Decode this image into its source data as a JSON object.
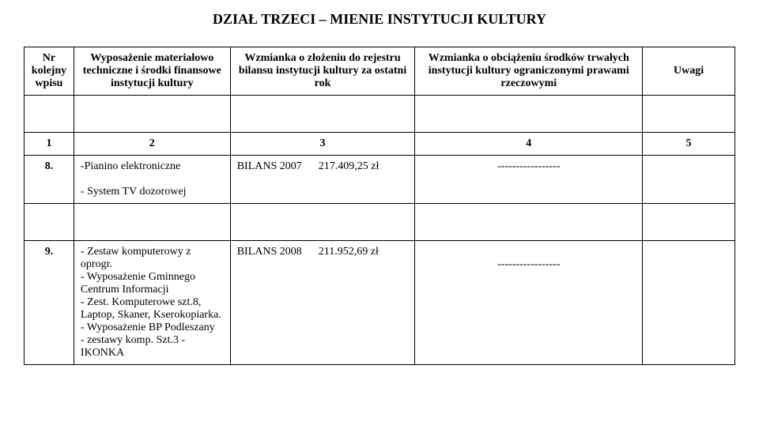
{
  "title": "DZIAŁ TRZECI – MIENIE INSTYTUCJI KULTURY",
  "headers": {
    "h1": "Nr kolejny wpisu",
    "h2": "Wyposażenie materiałowo techniczne i środki finansowe instytucji kultury",
    "h3": "Wzmianka o złożeniu do rejestru bilansu instytucji kultury za ostatni rok",
    "h4": "Wzmianka o obciążeniu środków trwałych instytucji kultury ograniczonymi prawami rzeczowymi",
    "h5": "Uwagi"
  },
  "numRow": {
    "n1": "1",
    "n2": "2",
    "n3": "3",
    "n4": "4",
    "n5": "5"
  },
  "rows": [
    {
      "c1": "8.",
      "c2": "-Pianino elektroniczne\n\n- System TV dozorowej",
      "c3": "BILANS 2007      217.409,25 zł",
      "c4": "-----------------",
      "c5": ""
    },
    {
      "c1": "9.",
      "c2": "- Zestaw komputerowy z oprogr.\n- Wyposażenie Gminnego Centrum Informacji\n- Zest. Komputerowe szt.8, Laptop, Skaner, Kserokopiarka.\n- Wyposażenie BP Podleszany\n- zestawy komp. Szt.3 - IKONKA",
      "c3": "BILANS 2008      211.952,69 zł",
      "c4": "\n-----------------",
      "c5": ""
    }
  ]
}
